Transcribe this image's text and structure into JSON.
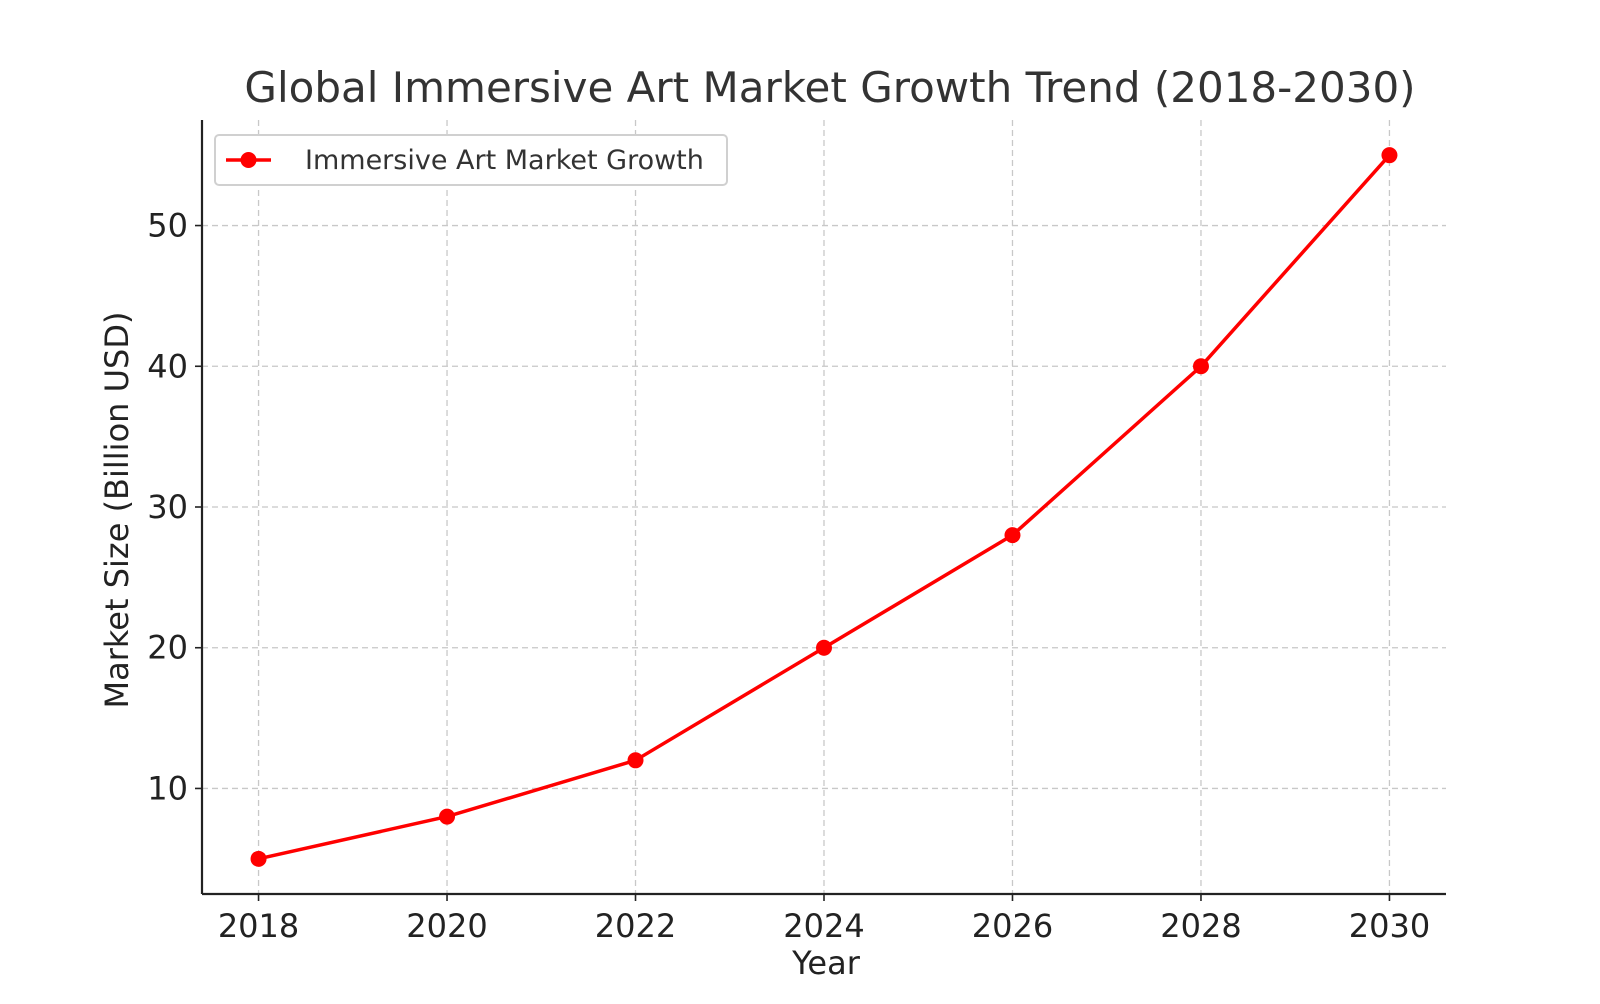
{
  "chart_data": {
    "type": "line",
    "title": "Global Immersive Art Market Growth Trend (2018-2030)",
    "xlabel": "Year",
    "ylabel": "Market Size (Billion USD)",
    "x": [
      2018,
      2020,
      2022,
      2024,
      2026,
      2028,
      2030
    ],
    "x_ticks": [
      "2018",
      "2020",
      "2022",
      "2024",
      "2026",
      "2028",
      "2030"
    ],
    "y_ticks": [
      "10",
      "20",
      "30",
      "40",
      "50"
    ],
    "xlim": [
      2017.4,
      2030.6
    ],
    "ylim": [
      2.5,
      57.5
    ],
    "grid": true,
    "legend_position": "top-left",
    "series": [
      {
        "name": "Immersive Art Market Growth",
        "color": "#ff0000",
        "marker": "circle",
        "values": [
          5,
          8,
          12,
          20,
          28,
          40,
          55
        ]
      }
    ]
  }
}
